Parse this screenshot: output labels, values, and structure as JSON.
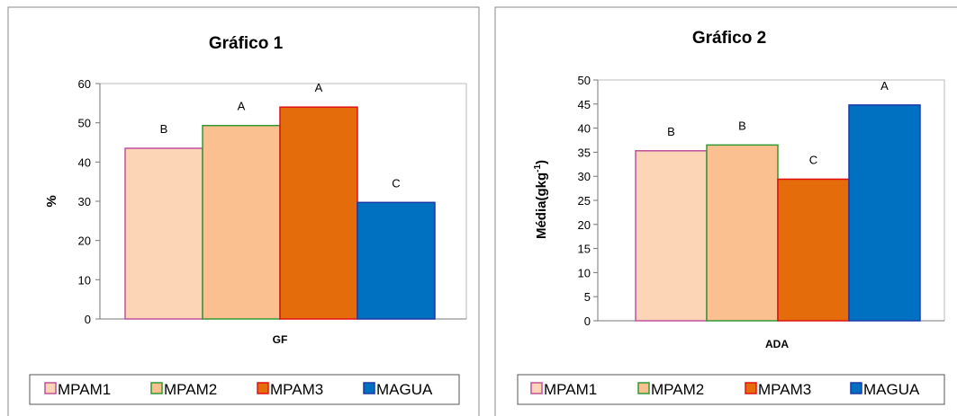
{
  "legend": [
    "MPAM1",
    "MPAM2",
    "MPAM3",
    "MAGUA"
  ],
  "colors": {
    "fills": [
      "#fbd5b5",
      "#fac090",
      "#e46c0a",
      "#0070c0"
    ],
    "strokes": [
      "#c0509f",
      "#339933",
      "#e01010",
      "#1a3aa8"
    ]
  },
  "chart_data": [
    {
      "type": "bar",
      "title": "Gráfico 1",
      "xlabel": "GF",
      "ylabel": "%",
      "ylim": [
        0,
        60
      ],
      "yticks": [
        0,
        10,
        20,
        30,
        40,
        50,
        60
      ],
      "grid": false,
      "legend_position": "bottom",
      "categories": [
        "GF"
      ],
      "series": [
        {
          "name": "MPAM1",
          "values": [
            43.5
          ],
          "label": "B"
        },
        {
          "name": "MPAM2",
          "values": [
            49.3
          ],
          "label": "A"
        },
        {
          "name": "MPAM3",
          "values": [
            54.0
          ],
          "label": "A"
        },
        {
          "name": "MAGUA",
          "values": [
            29.7
          ],
          "label": "C"
        }
      ]
    },
    {
      "type": "bar",
      "title": "Gráfico 2",
      "xlabel": "ADA",
      "ylabel": "Média(gkg",
      "ylabel_sup": "-1",
      "ylabel_end": ")",
      "ylim": [
        0,
        50
      ],
      "yticks": [
        0,
        5,
        10,
        15,
        20,
        25,
        30,
        35,
        40,
        45,
        50
      ],
      "grid": false,
      "legend_position": "bottom",
      "categories": [
        "ADA"
      ],
      "series": [
        {
          "name": "MPAM1",
          "values": [
            35.3
          ],
          "label": "B"
        },
        {
          "name": "MPAM2",
          "values": [
            36.5
          ],
          "label": "B"
        },
        {
          "name": "MPAM3",
          "values": [
            29.4
          ],
          "label": "C"
        },
        {
          "name": "MAGUA",
          "values": [
            44.8
          ],
          "label": "A"
        }
      ]
    }
  ]
}
